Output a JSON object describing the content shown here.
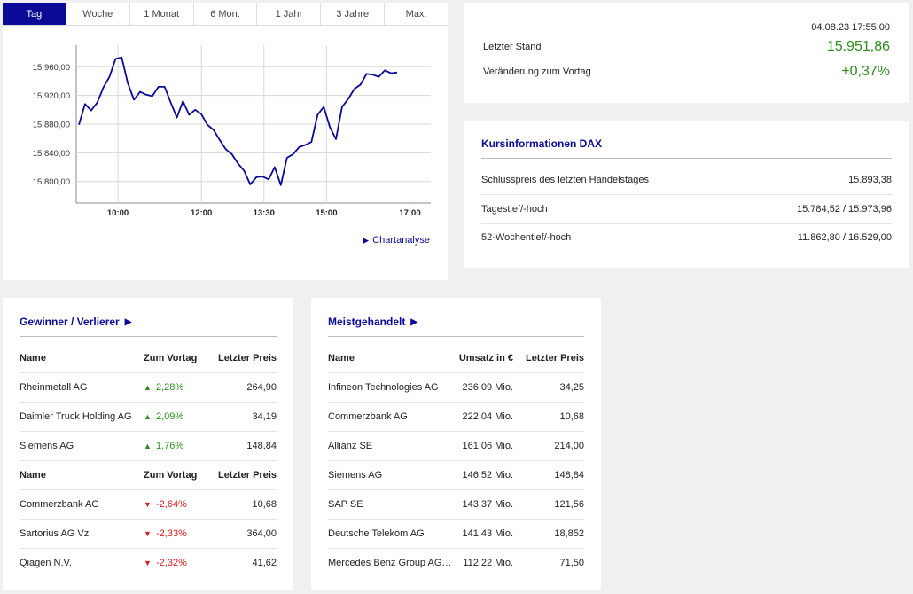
{
  "tabs": [
    {
      "label": "Tag",
      "active": true
    },
    {
      "label": "Woche"
    },
    {
      "label": "1 Monat"
    },
    {
      "label": "6 Mon."
    },
    {
      "label": "1 Jahr"
    },
    {
      "label": "3 Jahre"
    },
    {
      "label": "Max."
    }
  ],
  "chart_link": "Chartanalyse",
  "chart_data": {
    "type": "line",
    "y_ticks": [
      "15.960,00",
      "15.920,00",
      "15.880,00",
      "15.840,00",
      "15.800,00"
    ],
    "x_ticks": [
      "10:00",
      "12:00",
      "13:30",
      "15:00",
      "17:00"
    ],
    "ylim": [
      15770,
      15990
    ],
    "grid": true,
    "series": [
      {
        "values": [
          15879,
          15908,
          15899,
          15910,
          15931,
          15946,
          15971,
          15973,
          15937,
          15914,
          15925,
          15921,
          15919,
          15932,
          15932,
          15910,
          15889,
          15912,
          15893,
          15900,
          15894,
          15879,
          15872,
          15858,
          15845,
          15838,
          15825,
          15815,
          15796,
          15806,
          15807,
          15803,
          15820,
          15795,
          15833,
          15838,
          15848,
          15851,
          15855,
          15893,
          15904,
          15876,
          15859,
          15904,
          15915,
          15929,
          15935,
          15950,
          15949,
          15946,
          15955,
          15951,
          15952
        ]
      }
    ]
  },
  "stand": {
    "date": "04.08.23 17:55:00",
    "last_label": "Letzter Stand",
    "last_value": "15.951,86",
    "change_label": "Veränderung zum Vortag",
    "change_value": "+0,37%",
    "value_color": "#2e8b1f"
  },
  "info": {
    "title": "Kursinformationen DAX",
    "rows": [
      {
        "label": "Schlusspreis des letzten Handelstages",
        "value": "15.893,38"
      },
      {
        "label": "Tagestief/-hoch",
        "value": "15.784,52 / 15.973,96"
      },
      {
        "label": "52-Wochentief/-hoch",
        "value": "11.862,80 / 16.529,00"
      }
    ]
  },
  "gv": {
    "title": "Gewinner / Verlierer",
    "head": {
      "name": "Name",
      "chg": "Zum Vortag",
      "price": "Letzter Preis"
    },
    "winners": [
      {
        "name": "Rheinmetall AG",
        "chg": "2,28%",
        "price": "264,90"
      },
      {
        "name": "Daimler Truck Holding AG",
        "chg": "2,09%",
        "price": "34,19"
      },
      {
        "name": "Siemens AG",
        "chg": "1,76%",
        "price": "148,84"
      }
    ],
    "losers": [
      {
        "name": "Commerzbank AG",
        "chg": "-2,64%",
        "price": "10,68"
      },
      {
        "name": "Sartorius AG Vz",
        "chg": "-2,33%",
        "price": "364,00"
      },
      {
        "name": "Qiagen N.V.",
        "chg": "-2,32%",
        "price": "41,62"
      }
    ],
    "up_color": "#2e8b1f",
    "down_color": "#d32020"
  },
  "mg": {
    "title": "Meistgehandelt",
    "head": {
      "name": "Name",
      "turnover": "Umsatz in €",
      "price": "Letzter Preis"
    },
    "rows": [
      {
        "name": "Infineon Technologies AG",
        "turnover": "236,09 Mio.",
        "price": "34,25"
      },
      {
        "name": "Commerzbank AG",
        "turnover": "222,04 Mio.",
        "price": "10,68"
      },
      {
        "name": "Allianz SE",
        "turnover": "161,06 Mio.",
        "price": "214,00"
      },
      {
        "name": "Siemens AG",
        "turnover": "146,52 Mio.",
        "price": "148,84"
      },
      {
        "name": "SAP SE",
        "turnover": "143,37 Mio.",
        "price": "121,56"
      },
      {
        "name": "Deutsche Telekom AG",
        "turnover": "141,43 Mio.",
        "price": "18,852"
      },
      {
        "name": "Mercedes Benz Group AG ...",
        "turnover": "112,22 Mio.",
        "price": "71,50"
      }
    ]
  },
  "accent_color": "#0a0a96"
}
